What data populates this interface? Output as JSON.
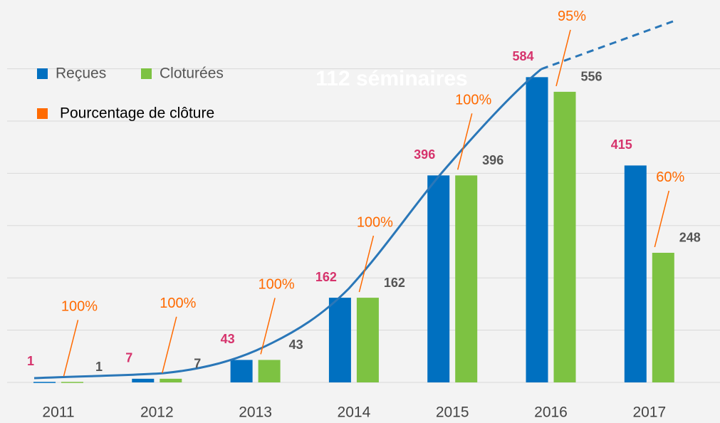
{
  "chart_data": {
    "type": "bar",
    "annotation": "112 séminaires",
    "categories": [
      "2011",
      "2012",
      "2013",
      "2014",
      "2015",
      "2016",
      "2017"
    ],
    "series": [
      {
        "name": "Reçues",
        "color": "#0070c0",
        "label_color": "#d6336c",
        "values": [
          1,
          7,
          43,
          162,
          396,
          584,
          415
        ]
      },
      {
        "name": "Cloturées",
        "color": "#7dc242",
        "label_color": "#555555",
        "values": [
          1,
          7,
          43,
          162,
          396,
          556,
          248
        ]
      }
    ],
    "percent_series": {
      "name": "Pourcentage de clôture",
      "color": "#ff6a00",
      "values": [
        100,
        100,
        100,
        100,
        100,
        95,
        60
      ],
      "value_labels": [
        "100%",
        "100%",
        "100%",
        "100%",
        "100%",
        "95%",
        "60%"
      ]
    },
    "ylim": [
      0,
      720
    ],
    "yticks": [
      0,
      100,
      200,
      300,
      400,
      500,
      600
    ],
    "grid": true
  }
}
